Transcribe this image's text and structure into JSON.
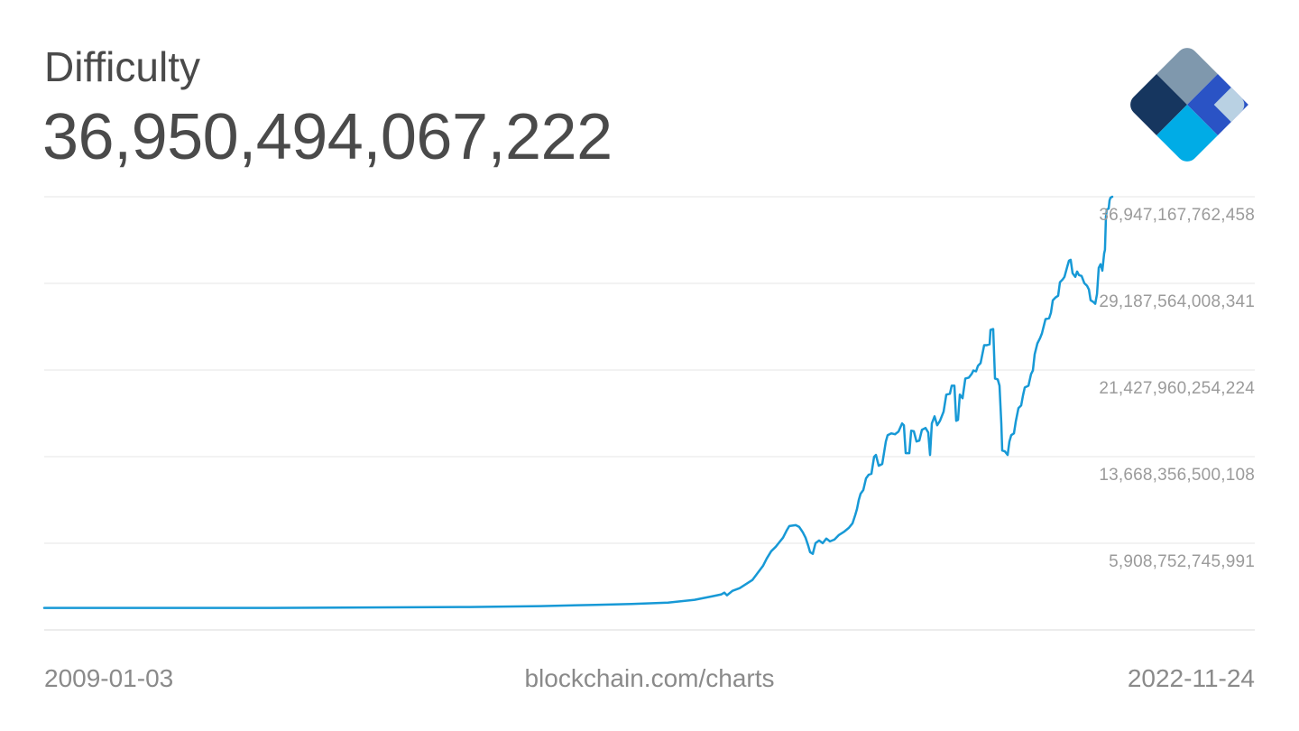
{
  "header": {
    "title": "Difficulty",
    "value": "36,950,494,067,222"
  },
  "logo": {
    "name": "blockchain-com-logo",
    "colors": {
      "top_facet": "#7f98ad",
      "left_facet": "#16365f",
      "right_facet": "#2a53c5",
      "bottom_facet": "#00ace6",
      "corner_facet": "#b9d1e3"
    }
  },
  "footer": {
    "start_date": "2009-01-03",
    "watermark": "blockchain.com/charts",
    "end_date": "2022-11-24"
  },
  "chart_data": {
    "type": "line",
    "title": "Difficulty",
    "current_value": 36950494067222,
    "x_range": [
      "2009-01-03",
      "2022-11-24"
    ],
    "grid": "horizontal-only",
    "legend": "none",
    "line_color": "#1799d6",
    "gridline_color": "#e6e6e6",
    "baseline_color": "#d9d9d9",
    "y_axis": {
      "side": "right",
      "tick_values": [
        36947167762458,
        29187564008341,
        21427960254224,
        13668356500108,
        5908752745991
      ],
      "tick_labels": [
        "36,947,167,762,458",
        "29,187,564,008,341",
        "21,427,960,254,224",
        "13,668,356,500,108",
        "5,908,752,745,991"
      ],
      "min": 0
    },
    "series": [
      {
        "name": "Difficulty",
        "unit": "trillions",
        "points": [
          [
            0.0,
            0.12
          ],
          [
            0.212,
            0.12
          ],
          [
            0.398,
            0.2
          ],
          [
            0.465,
            0.28
          ],
          [
            0.516,
            0.4
          ],
          [
            0.55,
            0.48
          ],
          [
            0.584,
            0.6
          ],
          [
            0.609,
            0.85
          ],
          [
            0.626,
            1.17
          ],
          [
            0.634,
            1.33
          ],
          [
            0.6368,
            1.49
          ],
          [
            0.6393,
            1.25
          ],
          [
            0.6444,
            1.65
          ],
          [
            0.6512,
            1.89
          ],
          [
            0.6579,
            2.3
          ],
          [
            0.663,
            2.62
          ],
          [
            0.6681,
            3.26
          ],
          [
            0.6731,
            3.91
          ],
          [
            0.6765,
            4.55
          ],
          [
            0.6807,
            5.2
          ],
          [
            0.685,
            5.6
          ],
          [
            0.6883,
            6.0
          ],
          [
            0.6917,
            6.41
          ],
          [
            0.6951,
            7.05
          ],
          [
            0.6976,
            7.45
          ],
          [
            0.7036,
            7.53
          ],
          [
            0.7069,
            7.37
          ],
          [
            0.7103,
            6.89
          ],
          [
            0.7128,
            6.41
          ],
          [
            0.7154,
            5.68
          ],
          [
            0.7171,
            5.12
          ],
          [
            0.7196,
            4.96
          ],
          [
            0.7221,
            5.92
          ],
          [
            0.7255,
            6.16
          ],
          [
            0.7289,
            5.92
          ],
          [
            0.7323,
            6.33
          ],
          [
            0.7356,
            6.08
          ],
          [
            0.7399,
            6.24
          ],
          [
            0.7441,
            6.65
          ],
          [
            0.7492,
            6.97
          ],
          [
            0.7534,
            7.29
          ],
          [
            0.7568,
            7.7
          ],
          [
            0.7593,
            8.42
          ],
          [
            0.761,
            8.98
          ],
          [
            0.7627,
            9.79
          ],
          [
            0.7644,
            10.35
          ],
          [
            0.7669,
            10.68
          ],
          [
            0.7694,
            11.72
          ],
          [
            0.772,
            12.05
          ],
          [
            0.7745,
            12.13
          ],
          [
            0.777,
            13.66
          ],
          [
            0.7787,
            13.82
          ],
          [
            0.7813,
            12.85
          ],
          [
            0.7846,
            13.01
          ],
          [
            0.788,
            15.03
          ],
          [
            0.7897,
            15.59
          ],
          [
            0.7931,
            15.75
          ],
          [
            0.7965,
            15.67
          ],
          [
            0.7998,
            15.91
          ],
          [
            0.8032,
            16.64
          ],
          [
            0.8049,
            16.48
          ],
          [
            0.8066,
            13.98
          ],
          [
            0.81,
            13.98
          ],
          [
            0.8117,
            16.0
          ],
          [
            0.8142,
            15.95
          ],
          [
            0.8167,
            15.03
          ],
          [
            0.8193,
            15.11
          ],
          [
            0.8218,
            16.08
          ],
          [
            0.8252,
            16.24
          ],
          [
            0.8277,
            15.83
          ],
          [
            0.8294,
            13.82
          ],
          [
            0.8311,
            16.64
          ],
          [
            0.8336,
            17.28
          ],
          [
            0.8361,
            16.48
          ],
          [
            0.8387,
            16.88
          ],
          [
            0.8421,
            17.69
          ],
          [
            0.8446,
            19.22
          ],
          [
            0.848,
            19.3
          ],
          [
            0.8497,
            20.02
          ],
          [
            0.8522,
            20.02
          ],
          [
            0.8539,
            16.88
          ],
          [
            0.8556,
            16.96
          ],
          [
            0.8573,
            19.22
          ],
          [
            0.8598,
            18.9
          ],
          [
            0.8624,
            20.67
          ],
          [
            0.8657,
            20.75
          ],
          [
            0.8683,
            21.07
          ],
          [
            0.87,
            21.39
          ],
          [
            0.8725,
            21.31
          ],
          [
            0.8742,
            21.8
          ],
          [
            0.8767,
            22.04
          ],
          [
            0.8784,
            22.84
          ],
          [
            0.8801,
            23.65
          ],
          [
            0.8826,
            23.65
          ],
          [
            0.8851,
            23.73
          ],
          [
            0.886,
            25.02
          ],
          [
            0.8885,
            25.1
          ],
          [
            0.8902,
            20.67
          ],
          [
            0.8927,
            20.59
          ],
          [
            0.8944,
            20.02
          ],
          [
            0.8961,
            16.64
          ],
          [
            0.897,
            14.22
          ],
          [
            0.8995,
            14.14
          ],
          [
            0.902,
            13.82
          ],
          [
            0.9037,
            15.03
          ],
          [
            0.9054,
            15.59
          ],
          [
            0.9079,
            15.75
          ],
          [
            0.9096,
            16.8
          ],
          [
            0.9122,
            18.01
          ],
          [
            0.9147,
            18.25
          ],
          [
            0.9164,
            19.14
          ],
          [
            0.9181,
            19.86
          ],
          [
            0.9215,
            20.02
          ],
          [
            0.924,
            21.07
          ],
          [
            0.9257,
            21.39
          ],
          [
            0.9274,
            22.84
          ],
          [
            0.9299,
            23.81
          ],
          [
            0.9324,
            24.29
          ],
          [
            0.9341,
            24.7
          ],
          [
            0.9358,
            25.34
          ],
          [
            0.9375,
            25.99
          ],
          [
            0.9409,
            26.07
          ],
          [
            0.9426,
            26.55
          ],
          [
            0.9443,
            27.68
          ],
          [
            0.9468,
            27.92
          ],
          [
            0.9493,
            28.08
          ],
          [
            0.951,
            29.29
          ],
          [
            0.9535,
            29.53
          ],
          [
            0.9552,
            29.77
          ],
          [
            0.9578,
            30.66
          ],
          [
            0.9595,
            31.22
          ],
          [
            0.9611,
            31.3
          ],
          [
            0.9628,
            30.09
          ],
          [
            0.9654,
            29.77
          ],
          [
            0.9671,
            30.25
          ],
          [
            0.9688,
            29.93
          ],
          [
            0.9713,
            29.85
          ],
          [
            0.9738,
            29.21
          ],
          [
            0.9764,
            28.96
          ],
          [
            0.9781,
            28.64
          ],
          [
            0.9797,
            27.68
          ],
          [
            0.9823,
            27.52
          ],
          [
            0.984,
            27.36
          ],
          [
            0.9857,
            28.24
          ],
          [
            0.9873,
            30.58
          ],
          [
            0.989,
            30.9
          ],
          [
            0.9907,
            30.33
          ],
          [
            0.9924,
            31.87
          ],
          [
            0.9932,
            32.19
          ],
          [
            0.9941,
            35.17
          ],
          [
            0.9949,
            35.81
          ],
          [
            0.9966,
            35.89
          ],
          [
            0.9975,
            36.62
          ],
          [
            0.9983,
            36.86
          ],
          [
            1.0,
            36.95
          ]
        ]
      }
    ]
  }
}
